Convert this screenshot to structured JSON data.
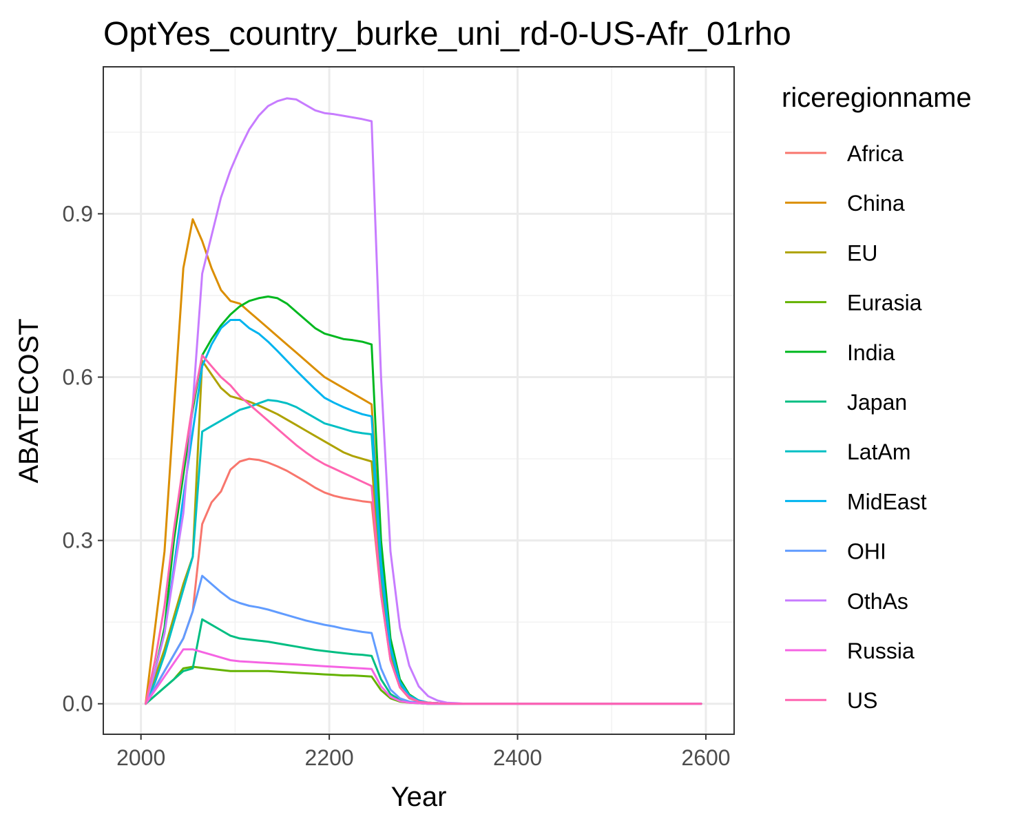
{
  "chart_data": {
    "type": "line",
    "title": "OptYes_country_burke_uni_rd-0-US-Afr_01rho",
    "xlabel": "Year",
    "ylabel": "ABATECOST",
    "xlim": [
      1960,
      2630
    ],
    "ylim": [
      -0.056,
      1.17
    ],
    "xticks": [
      2000,
      2200,
      2400,
      2600
    ],
    "xtick_labels": [
      "2000",
      "2200",
      "2400",
      "2600"
    ],
    "yticks": [
      0.0,
      0.3,
      0.6,
      0.9
    ],
    "ytick_labels": [
      "0.0",
      "0.3",
      "0.6",
      "0.9"
    ],
    "grid": true,
    "legend_title": "riceregionname",
    "legend_position": "right",
    "x": [
      2005,
      2015,
      2025,
      2035,
      2045,
      2055,
      2065,
      2075,
      2085,
      2095,
      2105,
      2115,
      2125,
      2135,
      2145,
      2155,
      2165,
      2175,
      2185,
      2195,
      2205,
      2215,
      2225,
      2235,
      2245,
      2255,
      2265,
      2275,
      2285,
      2295,
      2305,
      2315,
      2325,
      2335,
      2345,
      2355,
      2365,
      2375,
      2385,
      2395,
      2405,
      2415,
      2425,
      2435,
      2445,
      2455,
      2465,
      2475,
      2485,
      2495,
      2505,
      2515,
      2525,
      2535,
      2545,
      2555,
      2565,
      2575,
      2585,
      2595
    ],
    "series": [
      {
        "name": "Africa",
        "color": "#F8766D",
        "values": [
          0.0,
          0.03,
          0.06,
          0.09,
          0.12,
          0.17,
          0.33,
          0.37,
          0.39,
          0.43,
          0.445,
          0.45,
          0.448,
          0.443,
          0.436,
          0.428,
          0.418,
          0.408,
          0.397,
          0.388,
          0.382,
          0.378,
          0.375,
          0.372,
          0.37,
          0.2,
          0.08,
          0.03,
          0.01,
          0.004,
          0.002,
          0.001,
          0.0,
          0.0,
          0.0,
          0.0,
          0.0,
          0.0,
          0.0,
          0.0,
          0.0,
          0.0,
          0.0,
          0.0,
          0.0,
          0.0,
          0.0,
          0.0,
          0.0,
          0.0,
          0.0,
          0.0,
          0.0,
          0.0,
          0.0,
          0.0,
          0.0,
          0.0,
          0.0,
          0.0
        ]
      },
      {
        "name": "China",
        "color": "#DB8E00",
        "values": [
          0.0,
          0.14,
          0.28,
          0.54,
          0.8,
          0.89,
          0.85,
          0.8,
          0.76,
          0.74,
          0.735,
          0.72,
          0.705,
          0.69,
          0.675,
          0.66,
          0.645,
          0.63,
          0.615,
          0.6,
          0.59,
          0.58,
          0.57,
          0.56,
          0.55,
          0.27,
          0.11,
          0.04,
          0.015,
          0.006,
          0.002,
          0.001,
          0.0,
          0.0,
          0.0,
          0.0,
          0.0,
          0.0,
          0.0,
          0.0,
          0.0,
          0.0,
          0.0,
          0.0,
          0.0,
          0.0,
          0.0,
          0.0,
          0.0,
          0.0,
          0.0,
          0.0,
          0.0,
          0.0,
          0.0,
          0.0,
          0.0,
          0.0,
          0.0,
          0.0
        ]
      },
      {
        "name": "EU",
        "color": "#AEA200",
        "values": [
          0.0,
          0.05,
          0.1,
          0.16,
          0.22,
          0.27,
          0.63,
          0.605,
          0.58,
          0.565,
          0.56,
          0.555,
          0.548,
          0.54,
          0.532,
          0.522,
          0.512,
          0.502,
          0.492,
          0.482,
          0.472,
          0.462,
          0.455,
          0.45,
          0.445,
          0.22,
          0.09,
          0.035,
          0.013,
          0.005,
          0.002,
          0.001,
          0.0,
          0.0,
          0.0,
          0.0,
          0.0,
          0.0,
          0.0,
          0.0,
          0.0,
          0.0,
          0.0,
          0.0,
          0.0,
          0.0,
          0.0,
          0.0,
          0.0,
          0.0,
          0.0,
          0.0,
          0.0,
          0.0,
          0.0,
          0.0,
          0.0,
          0.0,
          0.0,
          0.0
        ]
      },
      {
        "name": "Eurasia",
        "color": "#64B200",
        "values": [
          0.0,
          0.015,
          0.03,
          0.045,
          0.065,
          0.068,
          0.066,
          0.064,
          0.062,
          0.06,
          0.06,
          0.06,
          0.06,
          0.06,
          0.059,
          0.058,
          0.057,
          0.056,
          0.055,
          0.054,
          0.053,
          0.052,
          0.052,
          0.051,
          0.05,
          0.025,
          0.01,
          0.004,
          0.002,
          0.001,
          0.0,
          0.0,
          0.0,
          0.0,
          0.0,
          0.0,
          0.0,
          0.0,
          0.0,
          0.0,
          0.0,
          0.0,
          0.0,
          0.0,
          0.0,
          0.0,
          0.0,
          0.0,
          0.0,
          0.0,
          0.0,
          0.0,
          0.0,
          0.0,
          0.0,
          0.0,
          0.0,
          0.0,
          0.0,
          0.0
        ]
      },
      {
        "name": "India",
        "color": "#00B81F",
        "values": [
          0.0,
          0.06,
          0.14,
          0.3,
          0.42,
          0.54,
          0.64,
          0.67,
          0.695,
          0.715,
          0.73,
          0.74,
          0.745,
          0.748,
          0.745,
          0.735,
          0.72,
          0.705,
          0.69,
          0.68,
          0.675,
          0.67,
          0.668,
          0.665,
          0.66,
          0.3,
          0.12,
          0.045,
          0.017,
          0.006,
          0.002,
          0.001,
          0.0,
          0.0,
          0.0,
          0.0,
          0.0,
          0.0,
          0.0,
          0.0,
          0.0,
          0.0,
          0.0,
          0.0,
          0.0,
          0.0,
          0.0,
          0.0,
          0.0,
          0.0,
          0.0,
          0.0,
          0.0,
          0.0,
          0.0,
          0.0,
          0.0,
          0.0,
          0.0,
          0.0
        ]
      },
      {
        "name": "Japan",
        "color": "#00BE82",
        "values": [
          0.0,
          0.015,
          0.03,
          0.045,
          0.06,
          0.065,
          0.155,
          0.145,
          0.135,
          0.125,
          0.12,
          0.118,
          0.116,
          0.114,
          0.111,
          0.108,
          0.105,
          0.102,
          0.099,
          0.097,
          0.095,
          0.093,
          0.091,
          0.09,
          0.088,
          0.045,
          0.018,
          0.007,
          0.003,
          0.001,
          0.0,
          0.0,
          0.0,
          0.0,
          0.0,
          0.0,
          0.0,
          0.0,
          0.0,
          0.0,
          0.0,
          0.0,
          0.0,
          0.0,
          0.0,
          0.0,
          0.0,
          0.0,
          0.0,
          0.0,
          0.0,
          0.0,
          0.0,
          0.0,
          0.0,
          0.0,
          0.0,
          0.0,
          0.0,
          0.0
        ]
      },
      {
        "name": "LatAm",
        "color": "#00BFC4",
        "values": [
          0.0,
          0.04,
          0.09,
          0.15,
          0.21,
          0.27,
          0.5,
          0.51,
          0.52,
          0.53,
          0.54,
          0.545,
          0.552,
          0.558,
          0.556,
          0.552,
          0.545,
          0.535,
          0.525,
          0.515,
          0.51,
          0.505,
          0.5,
          0.497,
          0.495,
          0.24,
          0.1,
          0.038,
          0.015,
          0.006,
          0.002,
          0.001,
          0.0,
          0.0,
          0.0,
          0.0,
          0.0,
          0.0,
          0.0,
          0.0,
          0.0,
          0.0,
          0.0,
          0.0,
          0.0,
          0.0,
          0.0,
          0.0,
          0.0,
          0.0,
          0.0,
          0.0,
          0.0,
          0.0,
          0.0,
          0.0,
          0.0,
          0.0,
          0.0,
          0.0
        ]
      },
      {
        "name": "MidEast",
        "color": "#00B4EF",
        "values": [
          0.0,
          0.06,
          0.13,
          0.25,
          0.38,
          0.5,
          0.62,
          0.66,
          0.69,
          0.705,
          0.705,
          0.69,
          0.68,
          0.665,
          0.648,
          0.63,
          0.612,
          0.595,
          0.578,
          0.562,
          0.553,
          0.545,
          0.538,
          0.532,
          0.528,
          0.26,
          0.105,
          0.04,
          0.015,
          0.006,
          0.002,
          0.001,
          0.0,
          0.0,
          0.0,
          0.0,
          0.0,
          0.0,
          0.0,
          0.0,
          0.0,
          0.0,
          0.0,
          0.0,
          0.0,
          0.0,
          0.0,
          0.0,
          0.0,
          0.0,
          0.0,
          0.0,
          0.0,
          0.0,
          0.0,
          0.0,
          0.0,
          0.0,
          0.0,
          0.0
        ]
      },
      {
        "name": "OHI",
        "color": "#619CFF",
        "values": [
          0.0,
          0.03,
          0.06,
          0.09,
          0.12,
          0.17,
          0.235,
          0.22,
          0.205,
          0.192,
          0.185,
          0.18,
          0.177,
          0.173,
          0.168,
          0.163,
          0.158,
          0.153,
          0.149,
          0.145,
          0.142,
          0.138,
          0.135,
          0.132,
          0.13,
          0.065,
          0.026,
          0.01,
          0.004,
          0.002,
          0.001,
          0.0,
          0.0,
          0.0,
          0.0,
          0.0,
          0.0,
          0.0,
          0.0,
          0.0,
          0.0,
          0.0,
          0.0,
          0.0,
          0.0,
          0.0,
          0.0,
          0.0,
          0.0,
          0.0,
          0.0,
          0.0,
          0.0,
          0.0,
          0.0,
          0.0,
          0.0,
          0.0,
          0.0,
          0.0
        ]
      },
      {
        "name": "OthAs",
        "color": "#C77CFF",
        "values": [
          0.0,
          0.06,
          0.13,
          0.24,
          0.35,
          0.55,
          0.79,
          0.86,
          0.93,
          0.98,
          1.02,
          1.055,
          1.08,
          1.098,
          1.107,
          1.112,
          1.11,
          1.1,
          1.09,
          1.085,
          1.083,
          1.08,
          1.077,
          1.074,
          1.07,
          0.6,
          0.28,
          0.14,
          0.07,
          0.032,
          0.014,
          0.006,
          0.002,
          0.001,
          0.0,
          0.0,
          0.0,
          0.0,
          0.0,
          0.0,
          0.0,
          0.0,
          0.0,
          0.0,
          0.0,
          0.0,
          0.0,
          0.0,
          0.0,
          0.0,
          0.0,
          0.0,
          0.0,
          0.0,
          0.0,
          0.0,
          0.0,
          0.0,
          0.0,
          0.0
        ]
      },
      {
        "name": "Russia",
        "color": "#F564E3",
        "values": [
          0.0,
          0.025,
          0.05,
          0.075,
          0.1,
          0.1,
          0.095,
          0.09,
          0.085,
          0.08,
          0.078,
          0.077,
          0.076,
          0.075,
          0.074,
          0.073,
          0.072,
          0.071,
          0.07,
          0.069,
          0.068,
          0.067,
          0.066,
          0.065,
          0.064,
          0.032,
          0.013,
          0.005,
          0.002,
          0.001,
          0.0,
          0.0,
          0.0,
          0.0,
          0.0,
          0.0,
          0.0,
          0.0,
          0.0,
          0.0,
          0.0,
          0.0,
          0.0,
          0.0,
          0.0,
          0.0,
          0.0,
          0.0,
          0.0,
          0.0,
          0.0,
          0.0,
          0.0,
          0.0,
          0.0,
          0.0,
          0.0,
          0.0,
          0.0,
          0.0
        ]
      },
      {
        "name": "US",
        "color": "#FF64B0",
        "values": [
          0.0,
          0.08,
          0.18,
          0.32,
          0.44,
          0.55,
          0.64,
          0.62,
          0.6,
          0.585,
          0.565,
          0.55,
          0.535,
          0.52,
          0.505,
          0.49,
          0.475,
          0.462,
          0.45,
          0.44,
          0.432,
          0.424,
          0.416,
          0.408,
          0.4,
          0.2,
          0.08,
          0.03,
          0.012,
          0.004,
          0.002,
          0.001,
          0.0,
          0.0,
          0.0,
          0.0,
          0.0,
          0.0,
          0.0,
          0.0,
          0.0,
          0.0,
          0.0,
          0.0,
          0.0,
          0.0,
          0.0,
          0.0,
          0.0,
          0.0,
          0.0,
          0.0,
          0.0,
          0.0,
          0.0,
          0.0,
          0.0,
          0.0,
          0.0,
          0.0
        ]
      }
    ]
  }
}
